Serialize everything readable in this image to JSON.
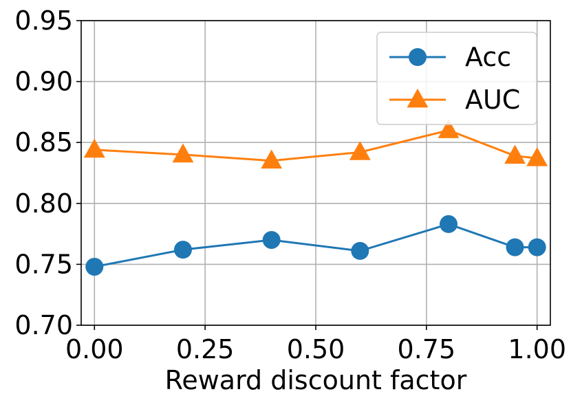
{
  "chart_data": {
    "type": "line",
    "xlabel": "Reward discount factor",
    "ylabel": "",
    "xlim": [
      -0.03,
      1.03
    ],
    "ylim": [
      0.7,
      0.95
    ],
    "xticks": [
      0.0,
      0.25,
      0.5,
      0.75,
      1.0
    ],
    "xtick_labels": [
      "0.00",
      "0.25",
      "0.50",
      "0.75",
      "1.00"
    ],
    "yticks": [
      0.7,
      0.75,
      0.8,
      0.85,
      0.9,
      0.95
    ],
    "ytick_labels": [
      "0.70",
      "0.75",
      "0.80",
      "0.85",
      "0.90",
      "0.95"
    ],
    "grid": true,
    "legend_position": "top-right",
    "series": [
      {
        "name": "Acc",
        "color": "#1f77b4",
        "marker": "circle",
        "x": [
          0.0,
          0.2,
          0.4,
          0.6,
          0.8,
          0.95,
          1.0
        ],
        "values": [
          0.748,
          0.762,
          0.77,
          0.761,
          0.783,
          0.764,
          0.764
        ]
      },
      {
        "name": "AUC",
        "color": "#ff7f0e",
        "marker": "triangle",
        "x": [
          0.0,
          0.2,
          0.4,
          0.6,
          0.8,
          0.95,
          1.0
        ],
        "values": [
          0.844,
          0.84,
          0.835,
          0.842,
          0.86,
          0.839,
          0.837
        ]
      }
    ]
  }
}
